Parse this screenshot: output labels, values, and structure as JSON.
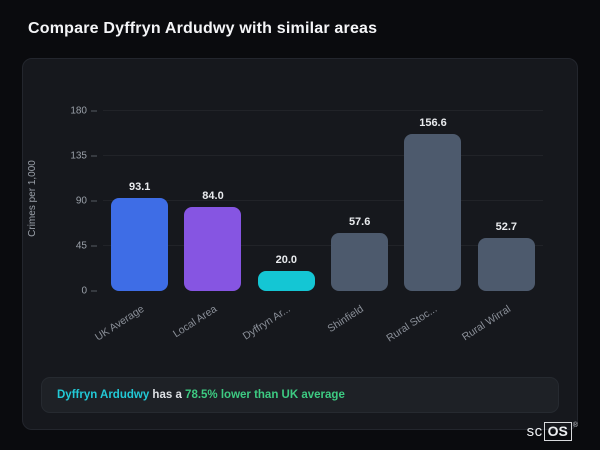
{
  "page": {
    "title": "Compare Dyffryn Ardudwy with similar areas"
  },
  "chart_data": {
    "type": "bar",
    "categories": [
      "UK Average",
      "Local Area",
      "Dyffryn Ar...",
      "Shinfield",
      "Rural Stoc...",
      "Rural Wirral"
    ],
    "values": [
      93.1,
      84.0,
      20.0,
      57.6,
      156.6,
      52.7
    ],
    "value_labels": [
      "93.1",
      "84.0",
      "20.0",
      "57.6",
      "156.6",
      "52.7"
    ],
    "bar_colors": [
      "#3e6de6",
      "#8655e2",
      "#14c6d4",
      "#4d5a6d",
      "#4d5a6d",
      "#4d5a6d"
    ],
    "title": "",
    "xlabel": "",
    "ylabel": "Crimes per 1,000",
    "yticks": [
      0,
      45,
      90,
      135,
      180
    ],
    "ylim": [
      0,
      186
    ],
    "grid": true,
    "legend": "none"
  },
  "note": {
    "area": "Dyffryn Ardudwy",
    "middle": " has a ",
    "stat": "78.5% lower than UK average"
  },
  "logo": {
    "prefix": "sc",
    "boxed": "OS",
    "reg": "®"
  }
}
